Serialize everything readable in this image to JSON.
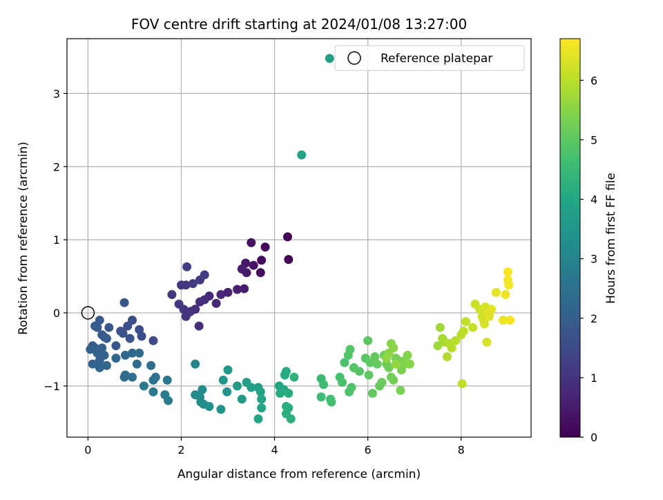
{
  "chart_data": {
    "type": "scatter",
    "title": "FOV centre drift starting at 2024/01/08 13:27:00",
    "xlabel": "Angular distance from reference (arcmin)",
    "ylabel": "Rotation from reference (arcmin)",
    "xlim": [
      -0.45,
      9.5
    ],
    "ylim": [
      -1.7,
      3.75
    ],
    "xticks": [
      0,
      2,
      4,
      6,
      8
    ],
    "yticks": [
      -1,
      0,
      1,
      2,
      3
    ],
    "xtick_labels": [
      "0",
      "2",
      "4",
      "6",
      "8"
    ],
    "ytick_labels": [
      "−1",
      "0",
      "1",
      "2",
      "3"
    ],
    "grid": true,
    "colormap": "viridis",
    "colorbar": {
      "label": "Hours from first FF file",
      "range": [
        0,
        6.7
      ],
      "ticks": [
        0,
        1,
        2,
        3,
        4,
        5,
        6
      ],
      "tick_labels": [
        "0",
        "1",
        "2",
        "3",
        "4",
        "5",
        "6"
      ]
    },
    "legend": {
      "label": "Reference platepar",
      "position": "top-right"
    },
    "reference_point": {
      "x": 0,
      "y": 0
    },
    "points": [
      [
        4.3,
        0.73,
        0.05
      ],
      [
        4.28,
        1.04,
        0.08
      ],
      [
        3.8,
        0.9,
        0.15
      ],
      [
        3.72,
        0.72,
        0.2
      ],
      [
        3.7,
        0.55,
        0.25
      ],
      [
        3.5,
        0.96,
        0.3
      ],
      [
        3.55,
        0.65,
        0.35
      ],
      [
        3.38,
        0.68,
        0.4
      ],
      [
        3.4,
        0.55,
        0.45
      ],
      [
        3.3,
        0.6,
        0.5
      ],
      [
        3.35,
        0.33,
        0.55
      ],
      [
        3.2,
        0.32,
        0.6
      ],
      [
        3.0,
        0.28,
        0.65
      ],
      [
        2.85,
        0.25,
        0.7
      ],
      [
        2.75,
        0.13,
        0.75
      ],
      [
        2.6,
        0.23,
        0.8
      ],
      [
        2.5,
        0.18,
        0.85
      ],
      [
        2.4,
        0.15,
        0.88
      ],
      [
        2.38,
        -0.18,
        0.9
      ],
      [
        2.3,
        0.05,
        0.93
      ],
      [
        2.2,
        0.02,
        0.95
      ],
      [
        2.15,
        0.0,
        0.98
      ],
      [
        2.1,
        -0.05,
        1.0
      ],
      [
        2.05,
        0.05,
        1.03
      ],
      [
        1.95,
        0.12,
        1.05
      ],
      [
        1.8,
        0.25,
        1.08
      ],
      [
        2.0,
        0.38,
        1.1
      ],
      [
        2.1,
        0.38,
        1.12
      ],
      [
        2.25,
        0.4,
        1.15
      ],
      [
        2.4,
        0.45,
        1.18
      ],
      [
        2.5,
        0.52,
        1.2
      ],
      [
        2.12,
        0.63,
        1.22
      ],
      [
        1.4,
        -0.38,
        1.5
      ],
      [
        1.15,
        -0.32,
        1.55
      ],
      [
        1.1,
        -0.23,
        1.6
      ],
      [
        0.95,
        -0.1,
        1.62
      ],
      [
        0.85,
        -0.18,
        1.65
      ],
      [
        0.75,
        -0.28,
        1.68
      ],
      [
        0.7,
        -0.25,
        1.7
      ],
      [
        0.9,
        -0.35,
        1.72
      ],
      [
        0.6,
        -0.45,
        1.75
      ],
      [
        0.78,
        0.14,
        1.78
      ],
      [
        0.45,
        -0.2,
        1.8
      ],
      [
        0.4,
        -0.35,
        1.82
      ],
      [
        0.3,
        -0.3,
        1.85
      ],
      [
        0.2,
        -0.2,
        1.88
      ],
      [
        0.15,
        -0.18,
        1.9
      ],
      [
        0.25,
        -0.1,
        1.92
      ],
      [
        0.35,
        -0.33,
        1.95
      ],
      [
        0.1,
        -0.45,
        1.97
      ],
      [
        0.05,
        -0.5,
        2.0
      ],
      [
        0.15,
        -0.48,
        2.02
      ],
      [
        0.3,
        -0.48,
        2.05
      ],
      [
        0.35,
        -0.58,
        2.08
      ],
      [
        0.2,
        -0.55,
        2.1
      ],
      [
        0.25,
        -0.65,
        2.12
      ],
      [
        0.1,
        -0.7,
        2.15
      ],
      [
        0.25,
        -0.75,
        2.18
      ],
      [
        0.4,
        -0.72,
        2.2
      ],
      [
        0.6,
        -0.62,
        2.22
      ],
      [
        0.8,
        -0.58,
        2.25
      ],
      [
        0.95,
        -0.55,
        2.28
      ],
      [
        1.1,
        -0.55,
        2.3
      ],
      [
        1.05,
        -0.7,
        2.32
      ],
      [
        0.8,
        -0.85,
        2.35
      ],
      [
        0.78,
        -0.88,
        2.38
      ],
      [
        0.95,
        -0.88,
        2.4
      ],
      [
        1.35,
        -0.72,
        2.45
      ],
      [
        1.45,
        -0.88,
        2.5
      ],
      [
        1.4,
        -0.92,
        2.55
      ],
      [
        1.7,
        -0.92,
        2.6
      ],
      [
        1.2,
        -1.0,
        2.65
      ],
      [
        1.4,
        -1.08,
        2.7
      ],
      [
        1.65,
        -1.12,
        2.75
      ],
      [
        1.72,
        -1.2,
        2.8
      ],
      [
        2.3,
        -0.7,
        3.0
      ],
      [
        2.3,
        -1.12,
        3.1
      ],
      [
        2.4,
        -1.15,
        3.15
      ],
      [
        2.45,
        -1.05,
        3.2
      ],
      [
        2.42,
        -1.22,
        3.25
      ],
      [
        2.48,
        -1.25,
        3.3
      ],
      [
        2.6,
        -1.28,
        3.35
      ],
      [
        2.85,
        -1.32,
        3.4
      ],
      [
        2.98,
        -1.08,
        3.45
      ],
      [
        2.9,
        -0.92,
        3.5
      ],
      [
        3.0,
        -0.78,
        3.55
      ],
      [
        3.2,
        -1.0,
        3.6
      ],
      [
        3.3,
        -1.18,
        3.65
      ],
      [
        3.4,
        -0.95,
        3.7
      ],
      [
        3.5,
        -1.02,
        3.75
      ],
      [
        3.65,
        -1.02,
        3.8
      ],
      [
        3.7,
        -1.08,
        3.85
      ],
      [
        3.72,
        -1.18,
        3.9
      ],
      [
        3.72,
        -1.3,
        3.95
      ],
      [
        3.65,
        -1.45,
        4.0
      ],
      [
        4.1,
        -1.0,
        4.0
      ],
      [
        4.2,
        -1.05,
        4.05
      ],
      [
        4.12,
        -1.1,
        4.08
      ],
      [
        4.22,
        -0.85,
        4.1
      ],
      [
        4.25,
        -0.8,
        4.12
      ],
      [
        4.3,
        -1.1,
        4.15
      ],
      [
        4.25,
        -1.28,
        4.18
      ],
      [
        4.3,
        -1.3,
        4.2
      ],
      [
        4.25,
        -1.38,
        4.22
      ],
      [
        4.35,
        -1.45,
        4.25
      ],
      [
        4.42,
        -0.88,
        4.3
      ],
      [
        4.58,
        2.16,
        3.85
      ],
      [
        5.18,
        3.48,
        3.8
      ],
      [
        5.0,
        -0.9,
        4.5
      ],
      [
        5.05,
        -0.98,
        4.55
      ],
      [
        5.0,
        -1.15,
        4.6
      ],
      [
        5.2,
        -1.18,
        4.65
      ],
      [
        5.22,
        -1.22,
        4.68
      ],
      [
        5.4,
        -0.88,
        4.72
      ],
      [
        5.45,
        -0.95,
        4.75
      ],
      [
        5.5,
        -0.68,
        4.78
      ],
      [
        5.6,
        -1.08,
        4.8
      ],
      [
        5.65,
        -1.02,
        4.82
      ],
      [
        5.58,
        -0.58,
        4.85
      ],
      [
        5.62,
        -0.5,
        4.88
      ],
      [
        5.7,
        -0.75,
        4.9
      ],
      [
        5.82,
        -0.8,
        4.92
      ],
      [
        5.95,
        -0.62,
        4.95
      ],
      [
        6.0,
        -0.38,
        4.98
      ],
      [
        6.02,
        -0.85,
        5.0
      ],
      [
        6.05,
        -0.68,
        5.02
      ],
      [
        6.1,
        -1.1,
        5.05
      ],
      [
        6.15,
        -0.6,
        5.08
      ],
      [
        6.2,
        -0.7,
        5.1
      ],
      [
        6.25,
        -1.0,
        5.12
      ],
      [
        6.3,
        -0.95,
        5.15
      ],
      [
        6.35,
        -0.58,
        5.18
      ],
      [
        6.4,
        -0.7,
        5.2
      ],
      [
        6.45,
        -0.75,
        5.22
      ],
      [
        6.5,
        -0.88,
        5.25
      ],
      [
        6.55,
        -0.92,
        5.28
      ],
      [
        6.6,
        -0.62,
        5.3
      ],
      [
        6.65,
        -0.65,
        5.32
      ],
      [
        6.7,
        -1.06,
        5.35
      ],
      [
        6.72,
        -0.78,
        5.38
      ],
      [
        6.75,
        -0.72,
        5.4
      ],
      [
        6.8,
        -0.65,
        5.42
      ],
      [
        6.85,
        -0.58,
        5.45
      ],
      [
        6.9,
        -0.7,
        5.48
      ],
      [
        6.5,
        -0.42,
        5.5
      ],
      [
        6.55,
        -0.48,
        5.52
      ],
      [
        6.45,
        -0.55,
        5.55
      ],
      [
        6.4,
        -0.62,
        5.58
      ],
      [
        6.6,
        -0.7,
        5.6
      ],
      [
        7.5,
        -0.45,
        5.7
      ],
      [
        7.55,
        -0.2,
        5.75
      ],
      [
        7.6,
        -0.35,
        5.8
      ],
      [
        7.65,
        -0.4,
        5.85
      ],
      [
        7.7,
        -0.6,
        5.9
      ],
      [
        7.75,
        -0.42,
        5.92
      ],
      [
        7.8,
        -0.48,
        5.95
      ],
      [
        7.88,
        -0.38,
        5.98
      ],
      [
        8.0,
        -0.3,
        6.0
      ],
      [
        8.05,
        -0.25,
        6.02
      ],
      [
        8.02,
        -0.97,
        6.05
      ],
      [
        8.1,
        -0.12,
        6.08
      ],
      [
        8.25,
        -0.2,
        6.1
      ],
      [
        8.3,
        0.12,
        6.15
      ],
      [
        8.4,
        0.05,
        6.2
      ],
      [
        8.45,
        -0.05,
        6.22
      ],
      [
        8.48,
        -0.1,
        6.25
      ],
      [
        8.5,
        -0.15,
        6.28
      ],
      [
        8.55,
        -0.4,
        6.3
      ],
      [
        8.52,
        0.08,
        6.32
      ],
      [
        8.58,
        0.0,
        6.35
      ],
      [
        8.6,
        -0.05,
        6.38
      ],
      [
        8.62,
        0.02,
        6.4
      ],
      [
        8.65,
        0.05,
        6.42
      ],
      [
        8.75,
        0.28,
        6.45
      ],
      [
        8.9,
        -0.1,
        6.5
      ],
      [
        8.95,
        0.25,
        6.55
      ],
      [
        9.0,
        0.45,
        6.58
      ],
      [
        9.02,
        0.38,
        6.6
      ],
      [
        9.05,
        -0.1,
        6.62
      ],
      [
        9.0,
        0.56,
        6.65
      ]
    ]
  }
}
